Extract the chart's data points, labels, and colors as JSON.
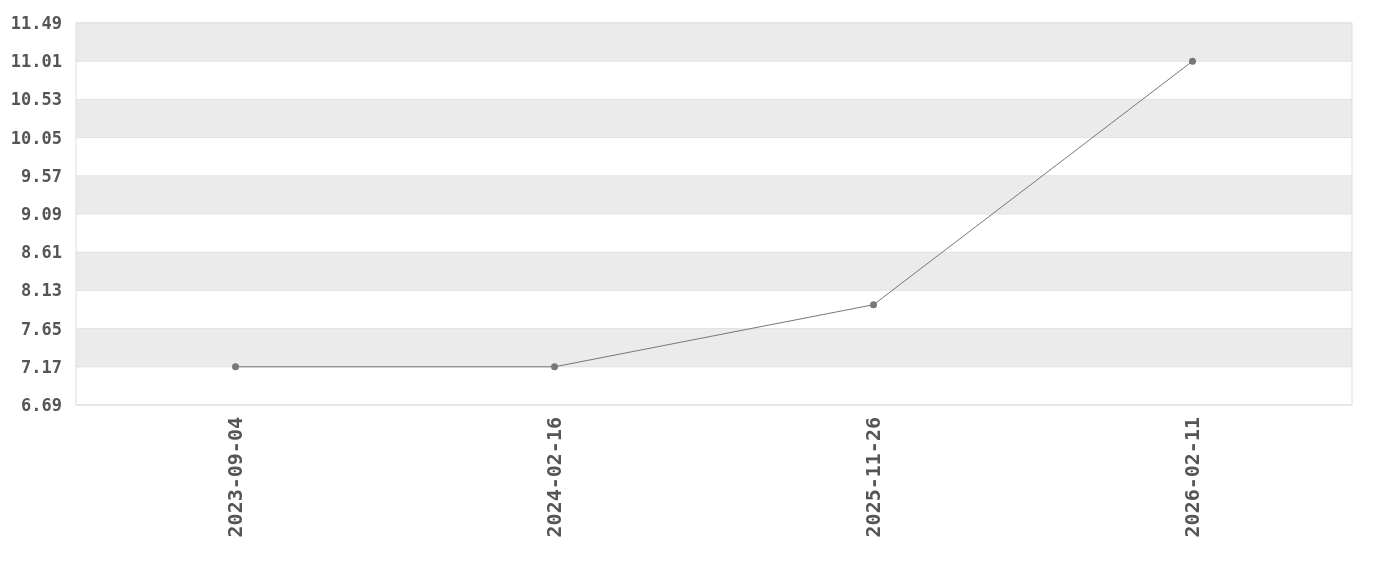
{
  "chart_data": {
    "type": "line",
    "categories": [
      "2023-09-04",
      "2024-02-16",
      "2025-11-26",
      "2026-02-11"
    ],
    "series": [
      {
        "color": "#777777",
        "values": [
          7.17,
          7.17,
          7.95,
          11.01
        ]
      }
    ],
    "ylim": [
      6.69,
      11.49
    ],
    "yticks": [
      6.69,
      7.17,
      7.65,
      8.13,
      8.61,
      9.09,
      9.57,
      10.05,
      10.53,
      11.01,
      11.49
    ],
    "grid": true,
    "marker": "circle",
    "line_style": "solid"
  }
}
